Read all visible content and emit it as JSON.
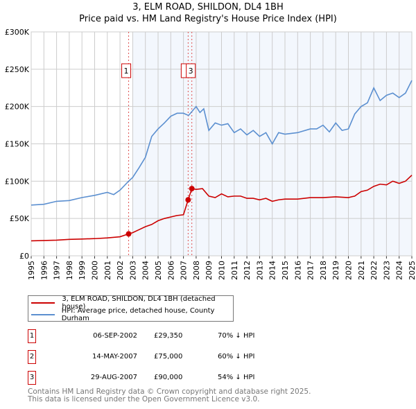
{
  "title": "3, ELM ROAD, SHILDON, DL4 1BH",
  "subtitle": "Price paid vs. HM Land Registry's House Price Index (HPI)",
  "chart_data": {
    "type": "line",
    "xlim": [
      1995,
      2025
    ],
    "ylim": [
      0,
      300000
    ],
    "x_ticks": [
      "1995",
      "1996",
      "1997",
      "1998",
      "1999",
      "2000",
      "2001",
      "2002",
      "2003",
      "2004",
      "2005",
      "2006",
      "2007",
      "2008",
      "2009",
      "2010",
      "2011",
      "2012",
      "2013",
      "2014",
      "2015",
      "2016",
      "2017",
      "2018",
      "2019",
      "2020",
      "2021",
      "2022",
      "2023",
      "2024",
      "2025"
    ],
    "y_ticks": [
      {
        "v": 0,
        "label": "£0"
      },
      {
        "v": 50000,
        "label": "£50K"
      },
      {
        "v": 100000,
        "label": "£100K"
      },
      {
        "v": 150000,
        "label": "£150K"
      },
      {
        "v": 200000,
        "label": "£200K"
      },
      {
        "v": 250000,
        "label": "£250K"
      },
      {
        "v": 300000,
        "label": "£300K"
      }
    ],
    "grid": true,
    "shaded_from": 2003.0,
    "series": [
      {
        "name": "3, ELM ROAD, SHILDON, DL4 1BH (detached house)",
        "color": "#cc0000",
        "x": [
          1995,
          1996,
          1997,
          1998,
          1999,
          2000,
          2001,
          2002,
          2002.68,
          2003,
          2003.5,
          2004,
          2004.5,
          2005,
          2005.5,
          2006,
          2006.5,
          2007,
          2007.37,
          2007.66,
          2008,
          2008.5,
          2009,
          2009.5,
          2010,
          2010.5,
          2011,
          2011.5,
          2012,
          2012.5,
          2013,
          2013.5,
          2014,
          2014.5,
          2015,
          2016,
          2017,
          2018,
          2019,
          2020,
          2020.5,
          2021,
          2021.5,
          2022,
          2022.5,
          2023,
          2023.5,
          2024,
          2024.5,
          2025
        ],
        "y": [
          20000,
          20500,
          21000,
          22000,
          22500,
          23000,
          24000,
          25500,
          29350,
          31000,
          35000,
          39000,
          42000,
          47000,
          50000,
          52000,
          54000,
          55000,
          75000,
          90000,
          89000,
          90000,
          80000,
          78000,
          83000,
          79000,
          80000,
          80000,
          77000,
          77000,
          75000,
          77000,
          73000,
          75000,
          76000,
          76000,
          78000,
          78000,
          79000,
          78000,
          80000,
          86000,
          88000,
          93000,
          96000,
          95000,
          100000,
          97000,
          100000,
          108000
        ]
      },
      {
        "name": "HPI: Average price, detached house, County Durham",
        "color": "#5b8fd0",
        "x": [
          1995,
          1996,
          1997,
          1998,
          1999,
          2000,
          2001,
          2001.5,
          2002,
          2002.68,
          2003,
          2003.5,
          2004,
          2004.5,
          2005,
          2005.5,
          2006,
          2006.5,
          2007,
          2007.4,
          2008,
          2008.3,
          2008.6,
          2009,
          2009.5,
          2010,
          2010.5,
          2011,
          2011.5,
          2012,
          2012.5,
          2013,
          2013.5,
          2014,
          2014.5,
          2015,
          2016,
          2017,
          2017.5,
          2018,
          2018.5,
          2019,
          2019.5,
          2020,
          2020.5,
          2021,
          2021.5,
          2022,
          2022.5,
          2023,
          2023.5,
          2024,
          2024.5,
          2025
        ],
        "y": [
          68000,
          69000,
          73000,
          74000,
          78000,
          81000,
          85000,
          82000,
          88000,
          100000,
          105000,
          118000,
          132000,
          160000,
          170000,
          178000,
          187000,
          191000,
          191000,
          188000,
          200000,
          192000,
          197000,
          168000,
          178000,
          175000,
          177000,
          165000,
          170000,
          162000,
          168000,
          160000,
          165000,
          150000,
          165000,
          163000,
          165000,
          170000,
          170000,
          175000,
          166000,
          178000,
          168000,
          170000,
          190000,
          200000,
          205000,
          225000,
          208000,
          215000,
          218000,
          212000,
          218000,
          235000
        ]
      }
    ],
    "annotations": [
      {
        "label": "1",
        "x": 2002.68,
        "y": 29350
      },
      {
        "label": "2",
        "x": 2007.37,
        "y": 75000
      },
      {
        "label": "3",
        "x": 2007.66,
        "y": 90000
      }
    ]
  },
  "legend": {
    "items": [
      {
        "label": "3, ELM ROAD, SHILDON, DL4 1BH (detached house)",
        "color": "#cc0000"
      },
      {
        "label": "HPI: Average price, detached house, County Durham",
        "color": "#5b8fd0"
      }
    ]
  },
  "transactions": [
    {
      "num": "1",
      "date": "06-SEP-2002",
      "price": "£29,350",
      "hpi": "70% ↓ HPI"
    },
    {
      "num": "2",
      "date": "14-MAY-2007",
      "price": "£75,000",
      "hpi": "60% ↓ HPI"
    },
    {
      "num": "3",
      "date": "29-AUG-2007",
      "price": "£90,000",
      "hpi": "54% ↓ HPI"
    }
  ],
  "footer": {
    "line1": "Contains HM Land Registry data © Crown copyright and database right 2025.",
    "line2": "This data is licensed under the Open Government Licence v3.0."
  }
}
